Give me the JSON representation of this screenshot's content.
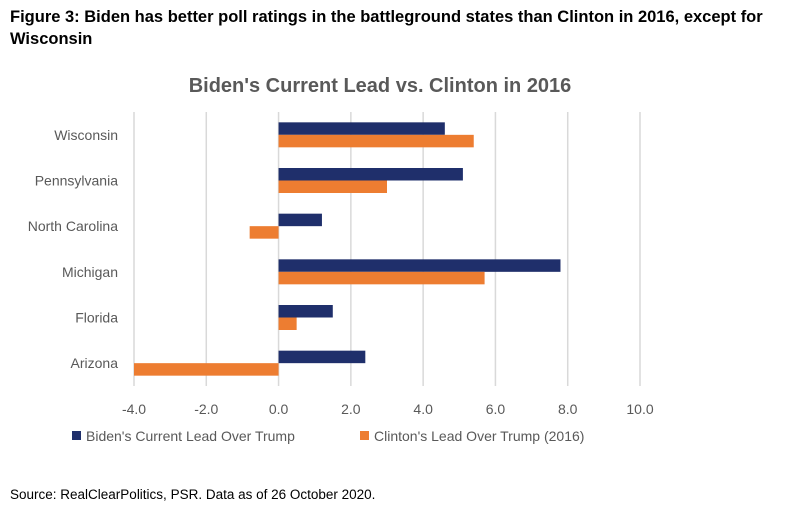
{
  "figure_caption": "Figure 3: Biden has better poll ratings in the battleground states than Clinton in 2016, except for Wisconsin",
  "source": "Source: RealClearPolitics, PSR. Data as of 26 October 2020.",
  "chart_data": {
    "type": "bar",
    "orientation": "horizontal",
    "title": "Biden's Current Lead vs. Clinton in 2016",
    "categories": [
      "Wisconsin",
      "Pennsylvania",
      "North Carolina",
      "Michigan",
      "Florida",
      "Arizona"
    ],
    "series": [
      {
        "name": "Biden's Current Lead Over Trump",
        "color": "#1f2f6b",
        "values": [
          4.6,
          5.1,
          1.2,
          7.8,
          1.5,
          2.4
        ]
      },
      {
        "name": "Clinton's Lead Over Trump (2016)",
        "color": "#ed7d31",
        "values": [
          5.4,
          3.0,
          -0.8,
          5.7,
          0.5,
          -4.0
        ]
      }
    ],
    "xlim": [
      -4.0,
      10.0
    ],
    "xticks": [
      "-4.0",
      "-2.0",
      "0.0",
      "2.0",
      "4.0",
      "6.0",
      "8.0",
      "10.0"
    ],
    "grid": true,
    "legend_position": "bottom"
  }
}
